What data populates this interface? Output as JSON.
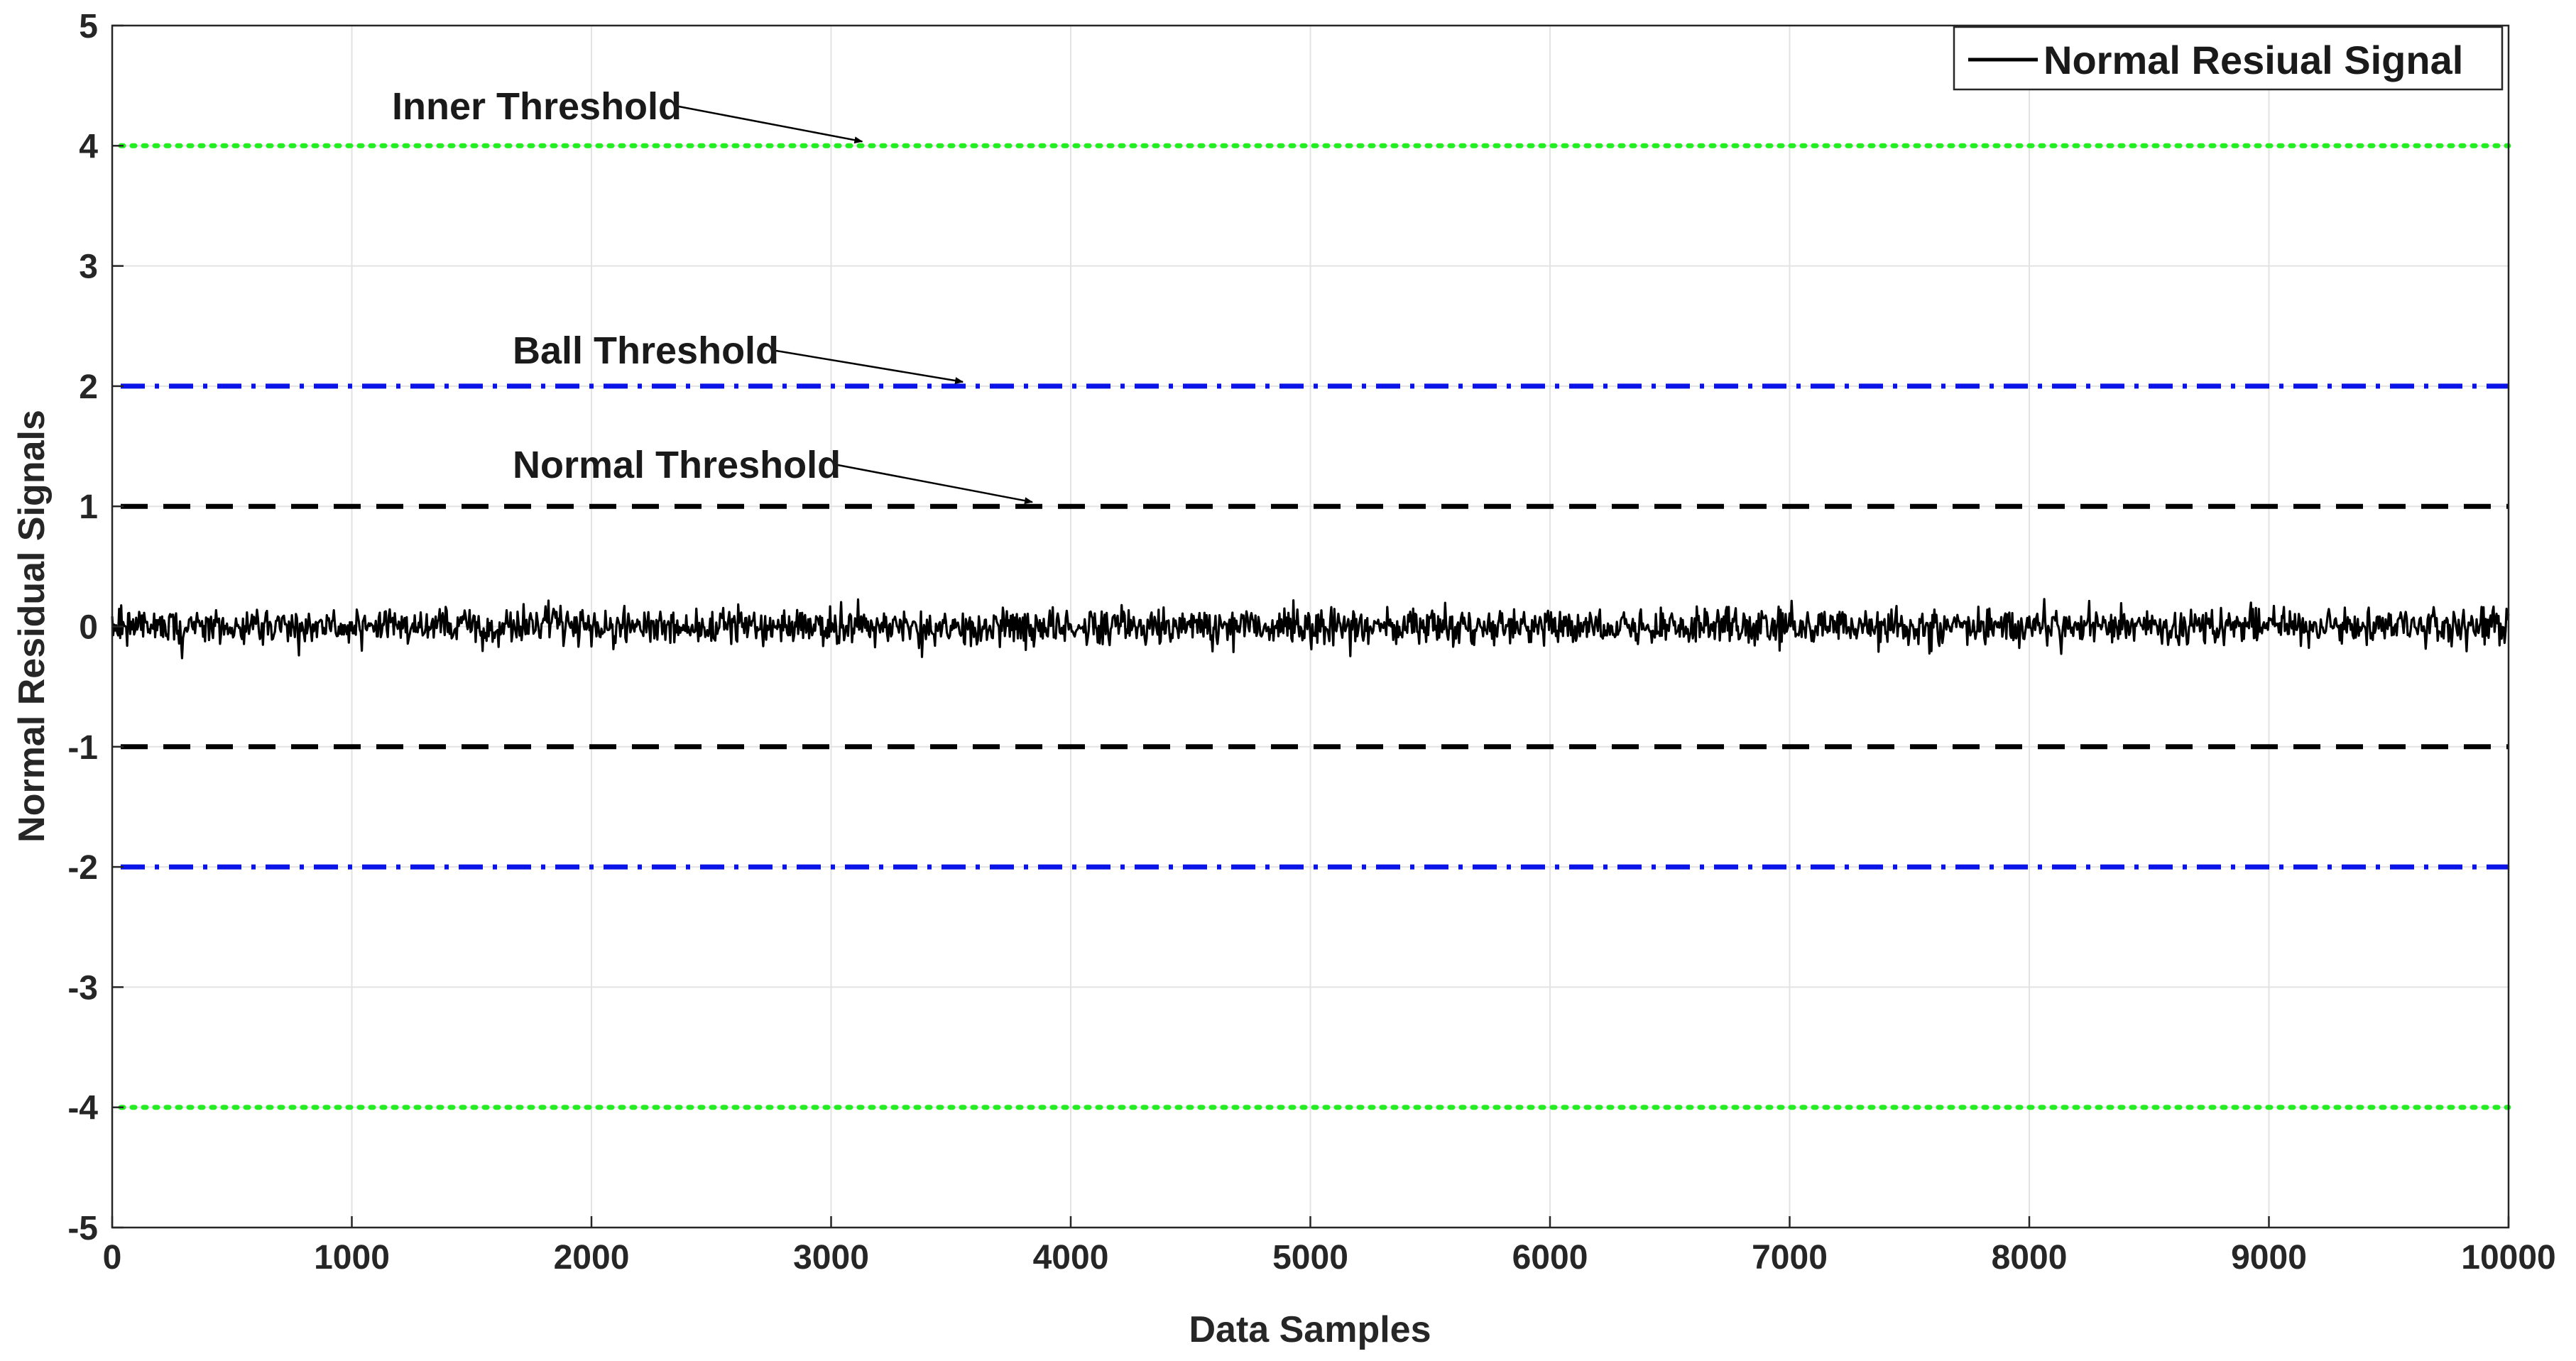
{
  "chart_data": {
    "type": "line",
    "title": "",
    "xlabel": "Data Samples",
    "ylabel": "Normal Residual Signals",
    "xlim": [
      0,
      10000
    ],
    "ylim": [
      -5,
      5
    ],
    "xticks": [
      0,
      1000,
      2000,
      3000,
      4000,
      5000,
      6000,
      7000,
      8000,
      9000,
      10000
    ],
    "yticks": [
      -5,
      -4,
      -3,
      -2,
      -1,
      0,
      1,
      2,
      3,
      4,
      5
    ],
    "xtick_labels": [
      "0",
      "1000",
      "2000",
      "3000",
      "4000",
      "5000",
      "6000",
      "7000",
      "8000",
      "9000",
      "10000"
    ],
    "ytick_labels": [
      "-5",
      "-4",
      "-3",
      "-2",
      "-1",
      "0",
      "1",
      "2",
      "3",
      "4",
      "5"
    ],
    "grid": true,
    "legend": {
      "position": "top-right",
      "entries": [
        "Normal Resiual Signal"
      ]
    },
    "signal": {
      "name": "Normal Resiual Signal",
      "color": "#000000",
      "x_range": [
        0,
        10000
      ],
      "mean": 0.0,
      "std_dev": 0.09,
      "min": -0.3,
      "max": 0.35
    },
    "thresholds": [
      {
        "name": "Inner Threshold",
        "values": [
          4,
          -4
        ],
        "color": "#22ee22",
        "style": "dotted"
      },
      {
        "name": "Ball Threshold",
        "values": [
          2,
          -2
        ],
        "color": "#0a14e6",
        "style": "dashdot"
      },
      {
        "name": "Normal Threshold",
        "values": [
          1,
          -1
        ],
        "color": "#000000",
        "style": "dashed"
      }
    ],
    "annotations": [
      {
        "text": "Inner Threshold",
        "arrow_to": {
          "x": 3130,
          "y": 4.0
        }
      },
      {
        "text": "Ball Threshold",
        "arrow_to": {
          "x": 3550,
          "y": 2.0
        }
      },
      {
        "text": "Normal Threshold",
        "arrow_to": {
          "x": 3840,
          "y": 1.0
        }
      }
    ]
  }
}
